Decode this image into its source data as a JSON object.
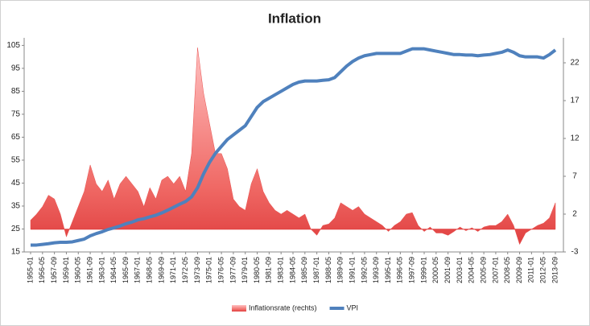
{
  "chart_data": {
    "type": "area-line",
    "title": "Inflation",
    "categories": [
      "1955-01",
      null,
      "1956-05",
      null,
      "1957-09",
      null,
      "1959-01",
      null,
      "1960-05",
      null,
      "1961-09",
      null,
      "1963-01",
      null,
      "1964-05",
      null,
      "1965-09",
      null,
      "1967-01",
      null,
      "1968-05",
      null,
      "1969-09",
      null,
      "1971-01",
      null,
      "1972-05",
      null,
      "1973-09",
      null,
      "1975-01",
      null,
      "1976-05",
      null,
      "1977-09",
      null,
      "1979-01",
      null,
      "1980-05",
      null,
      "1981-09",
      null,
      "1983-01",
      null,
      "1984-05",
      null,
      "1985-09",
      null,
      "1987-01",
      null,
      "1988-05",
      null,
      "1989-09",
      null,
      "1991-01",
      null,
      "1992-05",
      null,
      "1993-09",
      null,
      "1995-01",
      null,
      "1996-05",
      null,
      "1997-09",
      null,
      "1999-01",
      null,
      "2000-05",
      null,
      "2001-09",
      null,
      "2003-01",
      null,
      "2004-05",
      null,
      "2005-09",
      null,
      "2007-01",
      null,
      "2008-05",
      null,
      "2009-09",
      null,
      "2011-01",
      null,
      "2012-05",
      null,
      "2013-09"
    ],
    "series": [
      {
        "name": "Inflationsrate (rechts)",
        "color": "#e8514f",
        "axis": "y2",
        "values": [
          1.2,
          2,
          3,
          4.5,
          4,
          2,
          -1,
          1,
          3,
          5,
          8.5,
          6,
          5,
          6.5,
          4,
          6,
          7,
          6,
          5,
          3,
          5.5,
          4,
          6.5,
          7,
          6,
          7,
          5,
          10,
          24,
          18,
          14,
          10,
          10,
          8,
          4,
          3,
          2.5,
          6,
          8,
          5,
          3.5,
          2.5,
          2,
          2.5,
          2,
          1.5,
          2,
          0,
          -0.8,
          0.5,
          0.7,
          1.5,
          3.5,
          3,
          2.5,
          3,
          2,
          1.5,
          1,
          0.5,
          -0.3,
          0.5,
          1,
          2,
          2.2,
          0.5,
          -0.3,
          0.3,
          -0.5,
          -0.5,
          -0.8,
          -0.3,
          0.3,
          -0.2,
          0.2,
          -0.3,
          0.3,
          0.5,
          0.5,
          1,
          2,
          0.5,
          -2,
          -0.5,
          0,
          0.5,
          0.8,
          1.5,
          3.5
        ]
      },
      {
        "name": "VPI",
        "color": "#4f81bd",
        "values": [
          18,
          18,
          18.3,
          18.6,
          19,
          19.2,
          19.2,
          19.4,
          20,
          20.6,
          22,
          23,
          23.8,
          24.8,
          25.5,
          26.3,
          27.3,
          28,
          29,
          29.5,
          30.3,
          31,
          32,
          33.2,
          34.5,
          35.8,
          37,
          39,
          43,
          49,
          54,
          58,
          61,
          64,
          66,
          68,
          70,
          74,
          78,
          80.5,
          82,
          83.5,
          85,
          86.5,
          88,
          89,
          89.5,
          89.5,
          89.5,
          89.8,
          90,
          91,
          93.5,
          96,
          98,
          99.5,
          100.5,
          101,
          101.5,
          101.5,
          101.5,
          101.5,
          101.5,
          102.5,
          103.5,
          103.5,
          103.5,
          103,
          102.5,
          102,
          101.5,
          101,
          101,
          100.8,
          100.8,
          100.5,
          100.8,
          101,
          101.5,
          102,
          103,
          102,
          100.5,
          100,
          100,
          100,
          99.5,
          101,
          103
        ]
      }
    ],
    "ylim": [
      15,
      108.3
    ],
    "yticks": [
      15,
      25,
      35,
      45,
      55,
      65,
      75,
      85,
      95,
      105
    ],
    "y2lim": [
      -3,
      25.3
    ],
    "y2ticks": [
      -3,
      2,
      7,
      12,
      17,
      22
    ],
    "legend": "bottom"
  }
}
